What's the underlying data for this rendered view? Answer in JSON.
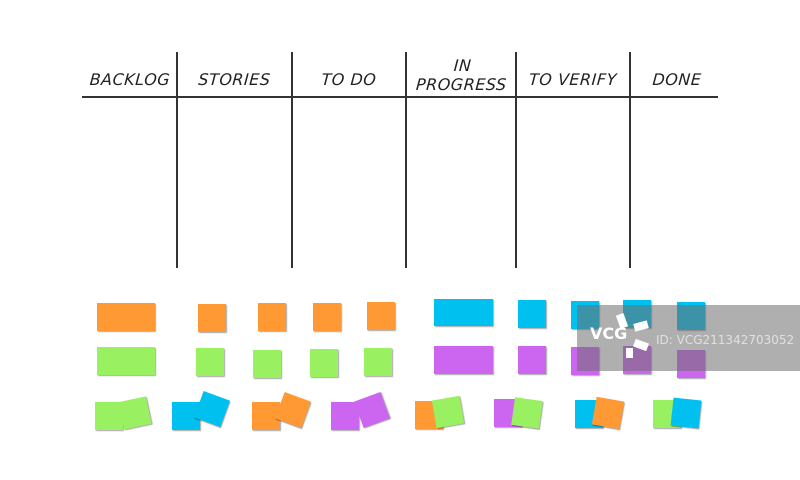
{
  "board": {
    "columns": [
      {
        "label": "BACKLOG"
      },
      {
        "label": "STORIES"
      },
      {
        "label": "TO DO"
      },
      {
        "label": "IN PROGRESS"
      },
      {
        "label": "TO VERIFY"
      },
      {
        "label": "DONE"
      }
    ],
    "line_color": "#333333"
  },
  "sticky_note_colors": {
    "orange": "#ff9933",
    "blue": "#00c0f0",
    "green": "#99f060",
    "purple": "#cc66f0"
  },
  "watermark": {
    "logo": "VCG",
    "id_text": "ID: VCG211342703052"
  }
}
